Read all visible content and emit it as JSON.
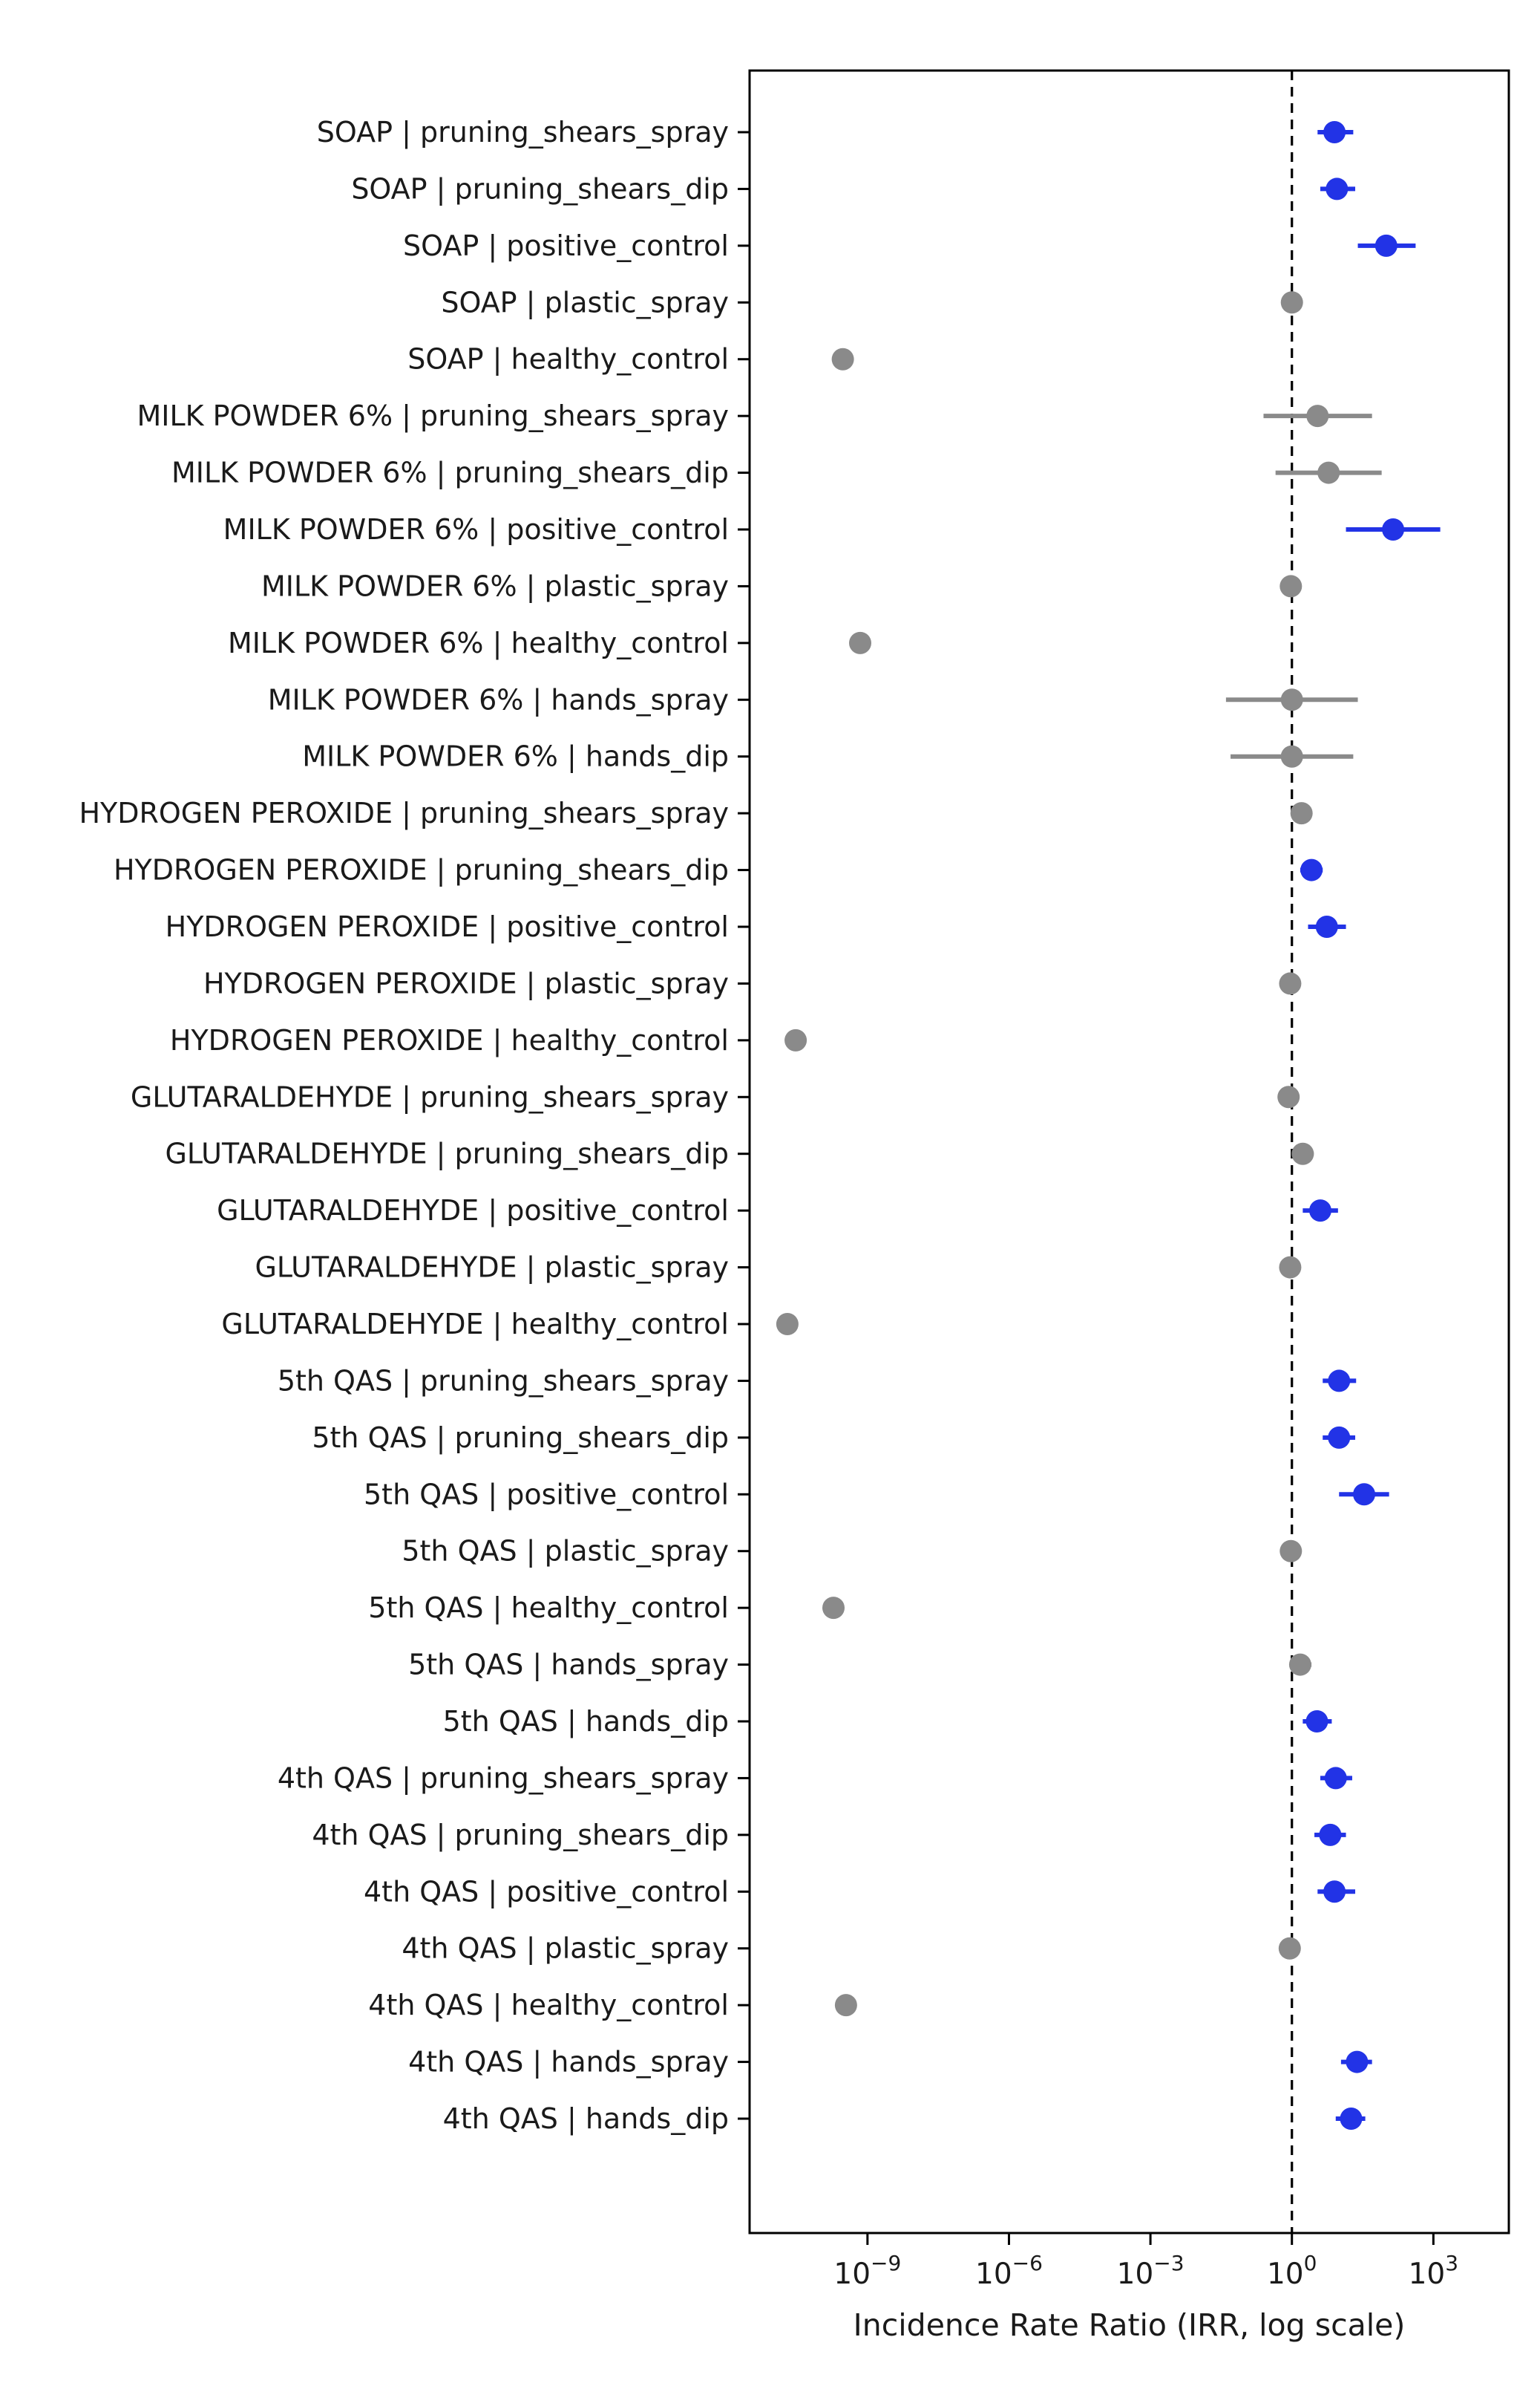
{
  "figure": {
    "background": "#ffffff"
  },
  "chart_data": {
    "type": "scatter",
    "subtype": "forest-errorbar",
    "title": "",
    "xlabel": "Incidence Rate Ratio (IRR, log scale)",
    "ylabel": "",
    "x_scale": "log10",
    "xlim_log10": [
      -11.5,
      4.6
    ],
    "reference_line": 1,
    "grid": false,
    "legend_position": "none",
    "x_ticks": [
      {
        "value": 1e-09,
        "base": "10",
        "exp": "−9"
      },
      {
        "value": 1e-06,
        "base": "10",
        "exp": "−6"
      },
      {
        "value": 0.001,
        "base": "10",
        "exp": "−3"
      },
      {
        "value": 1,
        "base": "10",
        "exp": "0"
      },
      {
        "value": 1000,
        "base": "10",
        "exp": "3"
      }
    ],
    "colors": {
      "significant": "#2233e6",
      "nonsignificant": "#8a8a8a",
      "reference_line": "#000000",
      "text": "#1a1a1a",
      "spine": "#000000"
    },
    "rows": [
      {
        "label": "SOAP | pruning_shears_spray",
        "irr": 8,
        "ci_low": 3.5,
        "ci_high": 20,
        "significant": true
      },
      {
        "label": "SOAP | pruning_shears_dip",
        "irr": 9,
        "ci_low": 4,
        "ci_high": 22,
        "significant": true
      },
      {
        "label": "SOAP | positive_control",
        "irr": 100,
        "ci_low": 25,
        "ci_high": 420,
        "significant": true
      },
      {
        "label": "SOAP | plastic_spray",
        "irr": 1.0,
        "ci_low": 0.75,
        "ci_high": 1.35,
        "significant": false
      },
      {
        "label": "SOAP | healthy_control",
        "irr": 3e-10,
        "ci_low": null,
        "ci_high": null,
        "significant": false
      },
      {
        "label": "MILK POWDER 6% | pruning_shears_spray",
        "irr": 3.5,
        "ci_low": 0.25,
        "ci_high": 50,
        "significant": false
      },
      {
        "label": "MILK POWDER 6% | pruning_shears_dip",
        "irr": 6,
        "ci_low": 0.45,
        "ci_high": 80,
        "significant": false
      },
      {
        "label": "MILK POWDER 6% | positive_control",
        "irr": 140,
        "ci_low": 14,
        "ci_high": 1400,
        "significant": true
      },
      {
        "label": "MILK POWDER 6% | plastic_spray",
        "irr": 0.95,
        "ci_low": 0.7,
        "ci_high": 1.3,
        "significant": false
      },
      {
        "label": "MILK POWDER 6% | healthy_control",
        "irr": 7e-10,
        "ci_low": null,
        "ci_high": null,
        "significant": false
      },
      {
        "label": "MILK POWDER 6% | hands_spray",
        "irr": 1.0,
        "ci_low": 0.04,
        "ci_high": 25,
        "significant": false
      },
      {
        "label": "MILK POWDER 6% | hands_dip",
        "irr": 1.0,
        "ci_low": 0.05,
        "ci_high": 20,
        "significant": false
      },
      {
        "label": "HYDROGEN PEROXIDE | pruning_shears_spray",
        "irr": 1.6,
        "ci_low": 1.0,
        "ci_high": 2.6,
        "significant": false
      },
      {
        "label": "HYDROGEN PEROXIDE | pruning_shears_dip",
        "irr": 2.6,
        "ci_low": 1.5,
        "ci_high": 4.5,
        "significant": true
      },
      {
        "label": "HYDROGEN PEROXIDE | positive_control",
        "irr": 5.5,
        "ci_low": 2.2,
        "ci_high": 14,
        "significant": true
      },
      {
        "label": "HYDROGEN PEROXIDE | plastic_spray",
        "irr": 0.92,
        "ci_low": 0.7,
        "ci_high": 1.2,
        "significant": false
      },
      {
        "label": "HYDROGEN PEROXIDE | healthy_control",
        "irr": 3e-11,
        "ci_low": null,
        "ci_high": null,
        "significant": false
      },
      {
        "label": "GLUTARALDEHYDE | pruning_shears_spray",
        "irr": 0.85,
        "ci_low": 0.6,
        "ci_high": 1.2,
        "significant": false
      },
      {
        "label": "GLUTARALDEHYDE | pruning_shears_dip",
        "irr": 1.7,
        "ci_low": 1.0,
        "ci_high": 2.9,
        "significant": false
      },
      {
        "label": "GLUTARALDEHYDE | positive_control",
        "irr": 4.0,
        "ci_low": 1.7,
        "ci_high": 9.5,
        "significant": true
      },
      {
        "label": "GLUTARALDEHYDE | plastic_spray",
        "irr": 0.92,
        "ci_low": 0.7,
        "ci_high": 1.2,
        "significant": false
      },
      {
        "label": "GLUTARALDEHYDE | healthy_control",
        "irr": 2e-11,
        "ci_low": null,
        "ci_high": null,
        "significant": false
      },
      {
        "label": "5th QAS | pruning_shears_spray",
        "irr": 10,
        "ci_low": 4.5,
        "ci_high": 23,
        "significant": true
      },
      {
        "label": "5th QAS | pruning_shears_dip",
        "irr": 10,
        "ci_low": 4.5,
        "ci_high": 22,
        "significant": true
      },
      {
        "label": "5th QAS | positive_control",
        "irr": 34,
        "ci_low": 10,
        "ci_high": 115,
        "significant": true
      },
      {
        "label": "5th QAS | plastic_spray",
        "irr": 0.95,
        "ci_low": 0.72,
        "ci_high": 1.25,
        "significant": false
      },
      {
        "label": "5th QAS | healthy_control",
        "irr": 1.9e-10,
        "ci_low": null,
        "ci_high": null,
        "significant": false
      },
      {
        "label": "5th QAS | hands_spray",
        "irr": 1.5,
        "ci_low": 0.9,
        "ci_high": 2.6,
        "significant": false
      },
      {
        "label": "5th QAS | hands_dip",
        "irr": 3.4,
        "ci_low": 1.7,
        "ci_high": 7,
        "significant": true
      },
      {
        "label": "4th QAS | pruning_shears_spray",
        "irr": 8.5,
        "ci_low": 4,
        "ci_high": 19,
        "significant": true
      },
      {
        "label": "4th QAS | pruning_shears_dip",
        "irr": 6.5,
        "ci_low": 3,
        "ci_high": 14,
        "significant": true
      },
      {
        "label": "4th QAS | positive_control",
        "irr": 8,
        "ci_low": 3.5,
        "ci_high": 22,
        "significant": true
      },
      {
        "label": "4th QAS | plastic_spray",
        "irr": 0.9,
        "ci_low": 0.7,
        "ci_high": 1.2,
        "significant": false
      },
      {
        "label": "4th QAS | healthy_control",
        "irr": 3.5e-10,
        "ci_low": null,
        "ci_high": null,
        "significant": false
      },
      {
        "label": "4th QAS | hands_spray",
        "irr": 24,
        "ci_low": 11,
        "ci_high": 50,
        "significant": true
      },
      {
        "label": "4th QAS | hands_dip",
        "irr": 18,
        "ci_low": 8.5,
        "ci_high": 36,
        "significant": true
      }
    ]
  }
}
